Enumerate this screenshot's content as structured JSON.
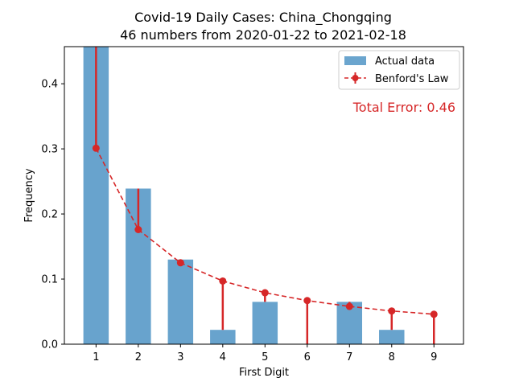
{
  "chart_data": {
    "type": "bar",
    "title": "Covid-19 Daily Cases: China_Chongqing",
    "subtitle": "46 numbers from 2020-01-22 to 2021-02-18",
    "xlabel": "First Digit",
    "ylabel": "Frequency",
    "categories": [
      "1",
      "2",
      "3",
      "4",
      "5",
      "6",
      "7",
      "8",
      "9"
    ],
    "x": [
      1,
      2,
      3,
      4,
      5,
      6,
      7,
      8,
      9
    ],
    "xlim": [
      0.25,
      9.7
    ],
    "ylim": [
      0,
      0.457
    ],
    "yticks": [
      0.0,
      0.1,
      0.2,
      0.3,
      0.4
    ],
    "ytick_labels": [
      "0.0",
      "0.1",
      "0.2",
      "0.3",
      "0.4"
    ],
    "series": [
      {
        "name": "Actual data",
        "kind": "bar",
        "color": "#5b9bc9",
        "values": [
          0.457,
          0.239,
          0.13,
          0.022,
          0.065,
          0.0,
          0.065,
          0.022,
          0.0
        ]
      },
      {
        "name": "Benford's Law",
        "kind": "line-with-error",
        "color": "#d62728",
        "values": [
          0.301,
          0.176,
          0.125,
          0.097,
          0.079,
          0.067,
          0.058,
          0.051,
          0.046
        ]
      }
    ],
    "annotation": "Total Error: 0.46",
    "annotation_color": "#d62728",
    "legend_position": "top-right",
    "grid": false
  }
}
